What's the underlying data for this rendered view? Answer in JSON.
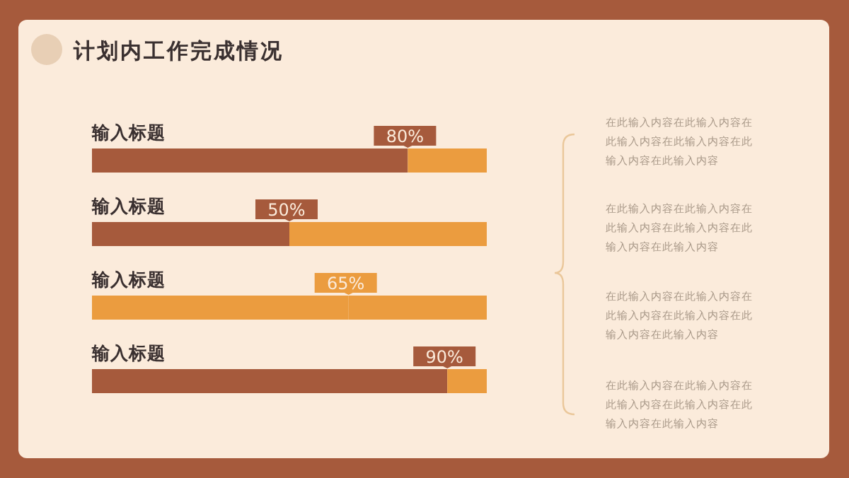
{
  "chart_data": {
    "type": "bar",
    "orientation": "horizontal",
    "stacked": true,
    "title": "计划内工作完成情况",
    "categories": [
      "输入标题",
      "输入标题",
      "输入标题",
      "输入标题"
    ],
    "series": [
      {
        "colors": [
          "#a65a3c",
          "#a65a3c",
          "#eb9c3f",
          "#a65a3c"
        ],
        "values": [
          80,
          50,
          65,
          90
        ],
        "value_labels": [
          "80%",
          "50%",
          "65%",
          "90%"
        ]
      },
      {
        "color": "#eb9c3f",
        "values": [
          20,
          50,
          35,
          10
        ]
      }
    ],
    "xlim": [
      0,
      100
    ],
    "annotations": [
      "在此输入内容在此输入内容在此输入内容在此输入内容在此输入内容在此输入内容",
      "在此输入内容在此输入内容在此输入内容在此输入内容在此输入内容在此输入内容",
      "在此输入内容在此输入内容在此输入内容在此输入内容在此输入内容在此输入内容",
      "在此输入内容在此输入内容在此输入内容在此输入内容在此输入内容在此输入内容"
    ]
  }
}
